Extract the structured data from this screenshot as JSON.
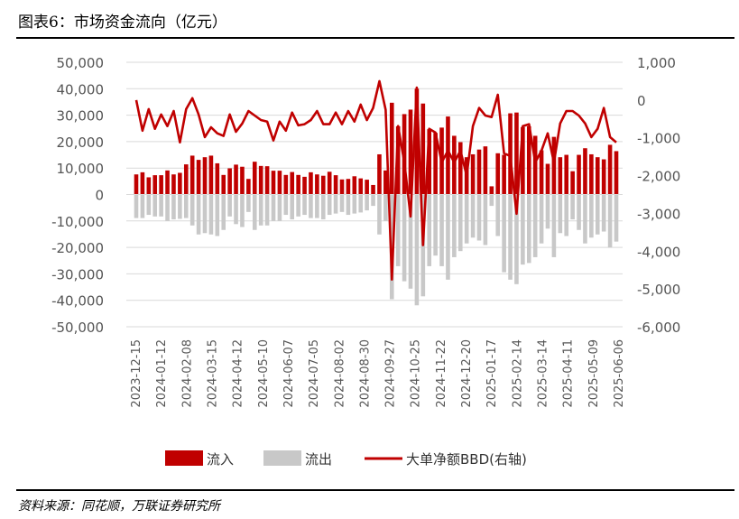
{
  "title": "图表6：市场资金流向（亿元）",
  "source": "资料来源：同花顺，万联证券研究所",
  "chart_data": {
    "type": "bar+line",
    "title": "",
    "x_tick_labels": [
      "2023-12-15",
      "2024-01-12",
      "2024-02-08",
      "2024-03-15",
      "2024-04-12",
      "2024-05-10",
      "2024-06-07",
      "2024-07-05",
      "2024-08-02",
      "2024-08-30",
      "2024-09-27",
      "2024-10-25",
      "2024-11-22",
      "2024-12-20",
      "2025-01-17",
      "2025-02-14",
      "2025-03-14",
      "2025-04-11",
      "2025-05-09",
      "2025-06-06"
    ],
    "left_axis": {
      "ylim": [
        -50000,
        50000
      ],
      "ticks": [
        "50,000",
        "40,000",
        "30,000",
        "20,000",
        "10,000",
        "0",
        "-10,000",
        "-20,000",
        "-30,000",
        "-40,000",
        "-50,000"
      ]
    },
    "right_axis": {
      "ylim": [
        -6000,
        1000
      ],
      "ticks": [
        "1,000",
        "0",
        "-1,000",
        "-2,000",
        "-3,000",
        "-4,000",
        "-5,000",
        "-6,000"
      ]
    },
    "grid": true,
    "legend_position": "bottom",
    "series": [
      {
        "name": "流入",
        "type": "bar",
        "axis": "left",
        "color": "#C00000",
        "values": [
          7600,
          8400,
          6500,
          7300,
          7300,
          9100,
          7600,
          8200,
          11400,
          14700,
          13100,
          14100,
          14700,
          11800,
          7400,
          9900,
          11300,
          10500,
          5900,
          12400,
          10800,
          10700,
          9000,
          9000,
          7400,
          8500,
          7400,
          6700,
          8400,
          7600,
          7100,
          8600,
          7300,
          5700,
          5900,
          6900,
          6100,
          5600,
          3600,
          15200,
          9100,
          34700,
          25800,
          30400,
          32100,
          40000,
          34400,
          24700,
          23300,
          25300,
          29500,
          22200,
          19800,
          14100,
          15200,
          17000,
          18200,
          3100,
          15600,
          15000,
          30700,
          31000,
          25500,
          25800,
          22200,
          16700,
          11600,
          21800,
          14100,
          15000,
          8800,
          15000,
          17500,
          15200,
          14100,
          13300,
          18800,
          16400
        ]
      },
      {
        "name": "流出",
        "type": "bar",
        "axis": "left",
        "color": "#C8C8C8",
        "values": [
          -8900,
          -8900,
          -7700,
          -8300,
          -8300,
          -10000,
          -9400,
          -9200,
          -8900,
          -11700,
          -15100,
          -14600,
          -15100,
          -15700,
          -13400,
          -8300,
          -11200,
          -12300,
          -6600,
          -13400,
          -11700,
          -11700,
          -10000,
          -10000,
          -7700,
          -9400,
          -8300,
          -7700,
          -8900,
          -8900,
          -9400,
          -7700,
          -7200,
          -6600,
          -7700,
          -7200,
          -6800,
          -6000,
          -4300,
          -15100,
          -10000,
          -39600,
          -27100,
          -32800,
          -35600,
          -41900,
          -38500,
          -27100,
          -23100,
          -27100,
          -32200,
          -23700,
          -21400,
          -18500,
          -16300,
          -17400,
          -19100,
          -4300,
          -15700,
          -29400,
          -32200,
          -33900,
          -26500,
          -25900,
          -23700,
          -18500,
          -12900,
          -23700,
          -14600,
          -15700,
          -9400,
          -13400,
          -18500,
          -16300,
          -15100,
          -14000,
          -20000,
          -17800
        ]
      },
      {
        "name": "大单净额BBD(右轴)",
        "type": "line",
        "axis": "right",
        "color": "#C00000",
        "values": [
          0,
          -810,
          -240,
          -760,
          -380,
          -690,
          -290,
          -1120,
          -240,
          50,
          -380,
          -980,
          -720,
          -880,
          -950,
          -380,
          -840,
          -620,
          -290,
          -410,
          -530,
          -570,
          -1070,
          -570,
          -810,
          -330,
          -670,
          -640,
          -530,
          -290,
          -640,
          -640,
          -330,
          -640,
          -290,
          -570,
          -120,
          -530,
          -210,
          500,
          -260,
          -4750,
          -690,
          -1650,
          -3080,
          330,
          -3840,
          -760,
          -860,
          -1650,
          -1340,
          -1650,
          -1340,
          -2000,
          -690,
          -210,
          -410,
          -450,
          140,
          -1410,
          -1480,
          -3010,
          -690,
          -640,
          -1650,
          -1340,
          -880,
          -1650,
          -620,
          -290,
          -290,
          -410,
          -620,
          -980,
          -760,
          -210,
          -980,
          -1120
        ]
      }
    ]
  }
}
